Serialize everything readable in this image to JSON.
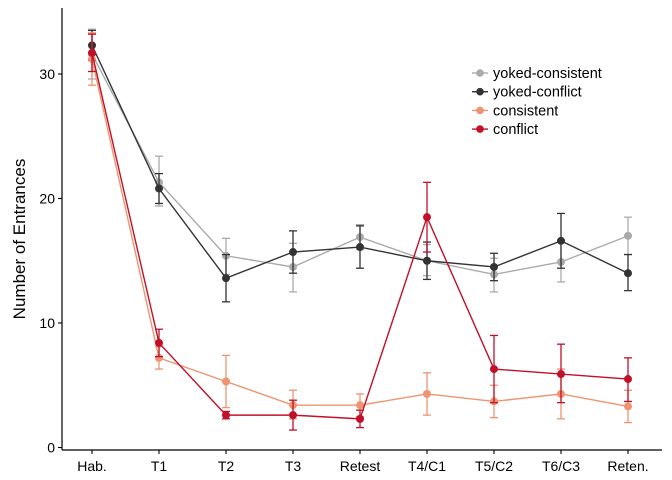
{
  "chart_data": {
    "type": "line",
    "title": "",
    "xlabel": "",
    "ylabel": "Number of Entrances",
    "categories": [
      "Hab.",
      "T1",
      "T2",
      "T3",
      "Retest",
      "T4/C1",
      "T5/C2",
      "T6/C3",
      "Reten."
    ],
    "ylim": [
      0,
      34
    ],
    "yticks": [
      0,
      10,
      20,
      30
    ],
    "grid": false,
    "legend_position": "top-right",
    "series": [
      {
        "name": "yoked-consistent",
        "color": "#aaaaaa",
        "values": [
          31.6,
          21.3,
          15.4,
          14.5,
          16.9,
          15.0,
          13.9,
          14.9,
          17.0
        ],
        "error_low": [
          29.6,
          19.4,
          13.9,
          12.5,
          15.9,
          13.8,
          12.5,
          13.3,
          15.5
        ],
        "error_high": [
          33.6,
          23.4,
          16.8,
          16.4,
          17.9,
          16.3,
          15.2,
          16.5,
          18.5
        ]
      },
      {
        "name": "yoked-conflict",
        "color": "#333333",
        "values": [
          32.3,
          20.8,
          13.6,
          15.7,
          16.1,
          15.0,
          14.5,
          16.6,
          14.0
        ],
        "error_low": [
          31.1,
          19.6,
          11.7,
          14.0,
          14.4,
          13.5,
          13.4,
          14.4,
          12.6
        ],
        "error_high": [
          33.5,
          22.0,
          15.5,
          17.4,
          17.8,
          16.5,
          15.6,
          18.8,
          15.5
        ]
      },
      {
        "name": "consistent",
        "color": "#ee9470",
        "values": [
          31.2,
          7.2,
          5.3,
          3.4,
          3.4,
          4.3,
          3.7,
          4.3,
          3.3
        ],
        "error_low": [
          29.1,
          6.3,
          3.2,
          2.3,
          2.5,
          2.6,
          2.4,
          2.3,
          2.0
        ],
        "error_high": [
          33.3,
          8.1,
          7.4,
          4.6,
          4.3,
          6.0,
          5.0,
          6.3,
          4.6
        ]
      },
      {
        "name": "conflict",
        "color": "#c0102a",
        "values": [
          31.7,
          8.4,
          2.6,
          2.6,
          2.3,
          18.5,
          6.3,
          5.9,
          5.5
        ],
        "error_low": [
          30.2,
          7.3,
          2.3,
          1.4,
          1.6,
          15.7,
          3.6,
          3.6,
          3.7
        ],
        "error_high": [
          33.2,
          9.5,
          2.9,
          3.8,
          3.0,
          21.3,
          9.0,
          8.3,
          7.2
        ]
      }
    ]
  }
}
